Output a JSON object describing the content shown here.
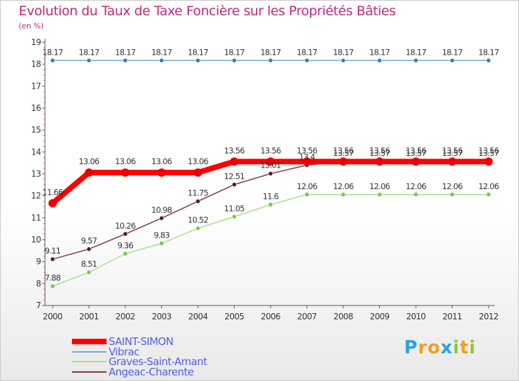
{
  "title": "Evolution du Taux de Taxe Foncière sur les Propriétés Bâties",
  "subtitle": "(en %)",
  "logo": {
    "letters": [
      "P",
      "r",
      "o",
      "x",
      "i",
      "t",
      "i"
    ],
    "colors": [
      "#2aa3df",
      "#f0a020",
      "#f0a020",
      "#2aa3df",
      "#8cc63f",
      "#f0a020",
      "#8cc63f"
    ]
  },
  "chart_data": {
    "type": "line",
    "title": "Evolution du Taux de Taxe Foncière sur les Propriétés Bâties",
    "ylabel": "(en %)",
    "xlabel": "",
    "ylim": [
      7,
      19
    ],
    "yticks": [
      "7",
      "8",
      "9",
      "10",
      "11",
      "12",
      "13",
      "14",
      "15",
      "16",
      "17",
      "18",
      "19"
    ],
    "categories": [
      "2000",
      "2001",
      "2002",
      "2003",
      "2004",
      "2005",
      "2006",
      "2007",
      "2008",
      "2009",
      "2010",
      "2011",
      "2012"
    ],
    "grid": false,
    "series": [
      {
        "name": "Vibrac",
        "color": "#79a9d8",
        "marker": "#2f7fc1",
        "values": [
          18.17,
          18.17,
          18.17,
          18.17,
          18.17,
          18.17,
          18.17,
          18.17,
          18.17,
          18.17,
          18.17,
          18.17,
          18.17
        ],
        "labels": [
          "18.17",
          "18.17",
          "18.17",
          "18.17",
          "18.17",
          "18.17",
          "18.17",
          "18.17",
          "18.17",
          "18.17",
          "18.17",
          "18.17",
          "18.17"
        ]
      },
      {
        "name": "Graves-Saint-Amant",
        "color": "#a8e08c",
        "marker": "#78c844",
        "values": [
          7.88,
          8.51,
          9.36,
          9.83,
          10.52,
          11.05,
          11.6,
          12.06,
          12.06,
          12.06,
          12.06,
          12.06,
          12.06
        ],
        "labels": [
          "7.88",
          "8.51",
          "9.36",
          "9.83",
          "10.52",
          "11.05",
          "11.6",
          "12.06",
          "12.06",
          "12.06",
          "12.06",
          "12.06",
          "12.06"
        ]
      },
      {
        "name": "Angeac-Charente",
        "color": "#7c3a3a",
        "marker": "#5a1a1a",
        "values": [
          9.11,
          9.57,
          10.26,
          10.98,
          11.75,
          12.51,
          13.01,
          13.4,
          13.57,
          13.57,
          13.57,
          13.57,
          13.57
        ],
        "labels": [
          "9.11",
          "9.57",
          "10.26",
          "10.98",
          "11.75",
          "12.51",
          "13.01",
          "13.4",
          "13.57",
          "13.57",
          "13.57",
          "13.57",
          "13.57"
        ]
      },
      {
        "name": "SAINT-SIMON",
        "color": "#ff0000",
        "marker": "#ee0000",
        "values": [
          11.66,
          13.06,
          13.06,
          13.06,
          13.06,
          13.56,
          13.56,
          13.56,
          13.56,
          13.56,
          13.56,
          13.56,
          13.56
        ],
        "labels": [
          "11.66",
          "13.06",
          "13.06",
          "13.06",
          "13.06",
          "13.56",
          "13.56",
          "13.56",
          "13.56",
          "13.56",
          "13.56",
          "13.56",
          "13.56"
        ]
      }
    ],
    "legend": [
      {
        "name": "SAINT-SIMON",
        "color": "#ff0000"
      },
      {
        "name": "Vibrac",
        "color": "#79a9d8"
      },
      {
        "name": "Graves-Saint-Amant",
        "color": "#a8e08c"
      },
      {
        "name": "Angeac-Charente",
        "color": "#7c3a3a"
      }
    ],
    "legend_position": "bottom-left"
  }
}
